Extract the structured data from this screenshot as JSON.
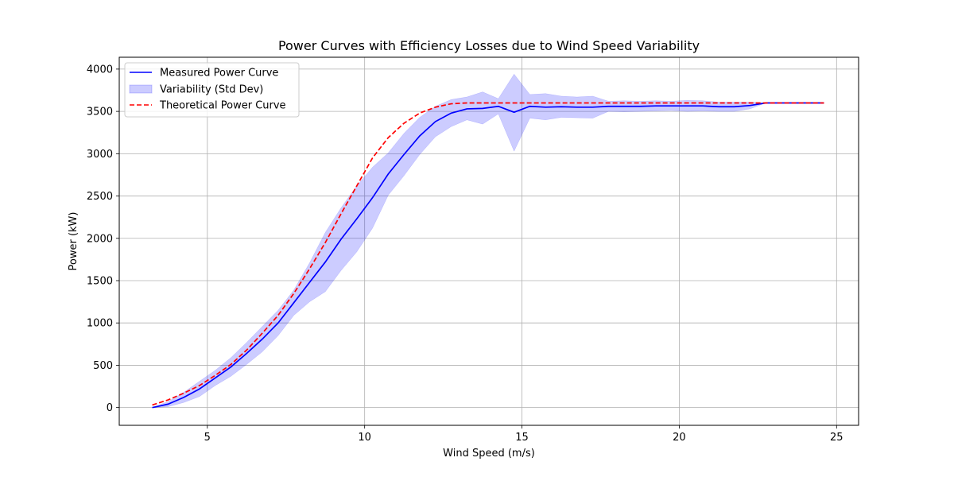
{
  "chart_data": {
    "type": "line",
    "title": "Power Curves with Efficiency Losses due to Wind Speed Variability",
    "xlabel": "Wind Speed (m/s)",
    "ylabel": "Power (kW)",
    "xlim": [
      2.2,
      25.7
    ],
    "ylim": [
      -210,
      4140
    ],
    "xticks": [
      5,
      10,
      15,
      20,
      25
    ],
    "yticks": [
      0,
      500,
      1000,
      1500,
      2000,
      2500,
      3000,
      3500,
      4000
    ],
    "grid": true,
    "legend_position": "upper-left",
    "colors": {
      "measured": "#0000ff",
      "band": "#0000ff",
      "band_opacity": 0.2,
      "theoretical": "#ff0000"
    },
    "series": [
      {
        "name": "Measured Power Curve",
        "style": "solid",
        "x": [
          3.25,
          3.75,
          4.25,
          4.75,
          5.25,
          5.75,
          6.25,
          6.75,
          7.25,
          7.75,
          8.25,
          8.75,
          9.25,
          9.75,
          10.25,
          10.75,
          11.25,
          11.75,
          12.25,
          12.75,
          13.25,
          13.75,
          14.25,
          14.75,
          15.25,
          15.75,
          16.25,
          16.75,
          17.25,
          17.75,
          18.25,
          18.75,
          19.25,
          19.75,
          20.25,
          20.75,
          21.25,
          21.75,
          22.25,
          22.75,
          23.25,
          23.75,
          24.25,
          24.6
        ],
        "values": [
          0,
          40,
          120,
          220,
          350,
          480,
          640,
          810,
          1000,
          1240,
          1480,
          1720,
          1990,
          2230,
          2480,
          2760,
          2990,
          3210,
          3380,
          3480,
          3530,
          3535,
          3560,
          3490,
          3560,
          3550,
          3555,
          3550,
          3550,
          3560,
          3560,
          3560,
          3565,
          3565,
          3565,
          3565,
          3555,
          3555,
          3570,
          3600,
          3600,
          3600,
          3600,
          3600
        ]
      },
      {
        "name": "Variability (Std Dev)",
        "style": "band",
        "x": [
          3.25,
          3.75,
          4.25,
          4.75,
          5.25,
          5.75,
          6.25,
          6.75,
          7.25,
          7.75,
          8.25,
          8.75,
          9.25,
          9.75,
          10.25,
          10.75,
          11.25,
          11.75,
          12.25,
          12.75,
          13.25,
          13.75,
          14.25,
          14.75,
          15.25,
          15.75,
          16.25,
          16.75,
          17.25,
          17.75,
          18.25,
          18.75,
          19.25,
          19.75,
          20.25,
          20.75,
          21.25,
          21.75,
          22.25,
          22.75,
          23.25,
          23.75,
          24.25,
          24.6
        ],
        "lower": [
          0,
          10,
          60,
          130,
          260,
          370,
          510,
          660,
          850,
          1090,
          1250,
          1370,
          1620,
          1840,
          2120,
          2510,
          2740,
          2990,
          3200,
          3320,
          3400,
          3350,
          3470,
          3030,
          3420,
          3400,
          3430,
          3425,
          3420,
          3500,
          3495,
          3500,
          3505,
          3510,
          3500,
          3505,
          3500,
          3500,
          3530,
          3600,
          3600,
          3600,
          3600,
          3600
        ],
        "upper": [
          0,
          70,
          180,
          310,
          440,
          590,
          770,
          960,
          1150,
          1390,
          1710,
          2070,
          2360,
          2620,
          2840,
          3010,
          3240,
          3430,
          3560,
          3640,
          3670,
          3730,
          3650,
          3940,
          3700,
          3710,
          3680,
          3670,
          3680,
          3620,
          3625,
          3620,
          3625,
          3620,
          3630,
          3625,
          3610,
          3610,
          3610,
          3600,
          3600,
          3600,
          3600,
          3600
        ]
      },
      {
        "name": "Theoretical Power Curve",
        "style": "dashed",
        "x": [
          3.25,
          3.75,
          4.25,
          4.75,
          5.25,
          5.75,
          6.25,
          6.75,
          7.25,
          7.75,
          8.25,
          8.75,
          9.25,
          9.75,
          10.25,
          10.75,
          11.25,
          11.75,
          12.25,
          12.75,
          13.25,
          13.75,
          14.25,
          14.75,
          15.25,
          15.75,
          16.25,
          16.75,
          17.25,
          17.75,
          18.25,
          18.75,
          19.25,
          19.75,
          20.25,
          20.75,
          21.25,
          21.75,
          22.25,
          22.75,
          23.25,
          23.75,
          24.25,
          24.6
        ],
        "values": [
          30,
          90,
          170,
          260,
          380,
          510,
          680,
          880,
          1090,
          1350,
          1640,
          1950,
          2290,
          2620,
          2950,
          3190,
          3360,
          3480,
          3550,
          3590,
          3600,
          3600,
          3600,
          3600,
          3600,
          3600,
          3600,
          3600,
          3600,
          3600,
          3600,
          3600,
          3600,
          3600,
          3600,
          3600,
          3600,
          3600,
          3600,
          3600,
          3600,
          3600,
          3600,
          3600
        ]
      }
    ]
  }
}
